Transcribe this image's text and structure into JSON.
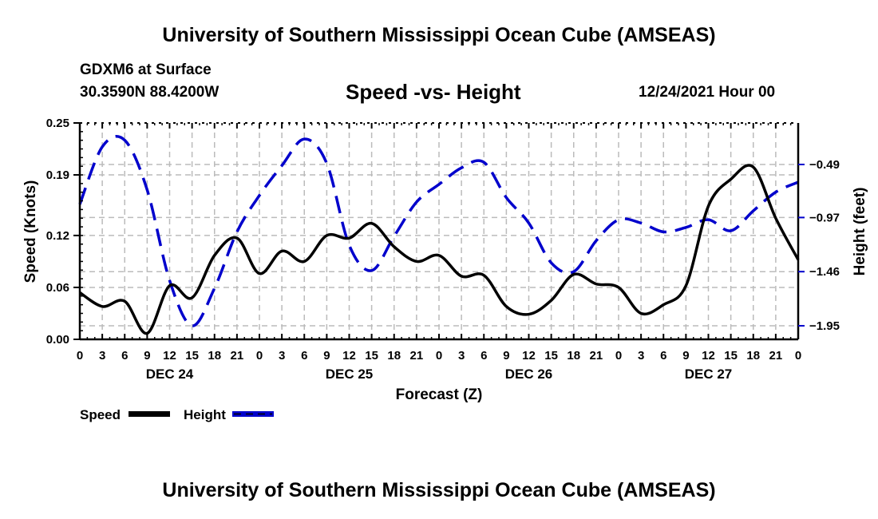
{
  "header": {
    "title": "University of Southern Mississippi Ocean Cube (AMSEAS)",
    "station": "GDXM6 at Surface",
    "coordinates": "30.3590N  88.4200W",
    "forecast_time": "12/24/2021 Hour 00"
  },
  "footer": {
    "title": "University of Southern Mississippi Ocean Cube (AMSEAS)"
  },
  "colors": {
    "speed": "#000000",
    "height": "#0000cc",
    "grid": "#bbbbbb"
  },
  "chart_data": {
    "type": "line",
    "title": "Speed -vs- Height",
    "xlabel": "Forecast (Z)",
    "ylabel": "Speed (Knots)",
    "y2label": "Height (feet)",
    "x_hours": [
      0,
      3,
      6,
      9,
      12,
      15,
      18,
      21,
      24,
      27,
      30,
      33,
      36,
      39,
      42,
      45,
      48,
      51,
      54,
      57,
      60,
      63,
      66,
      69,
      72,
      75,
      78,
      81,
      84,
      87,
      90,
      93,
      96
    ],
    "x_tick_labels": [
      "0",
      "3",
      "6",
      "9",
      "12",
      "15",
      "18",
      "21",
      "0",
      "3",
      "6",
      "9",
      "12",
      "15",
      "18",
      "21",
      "0",
      "3",
      "6",
      "9",
      "12",
      "15",
      "18",
      "21",
      "0",
      "3",
      "6",
      "9",
      "12",
      "15",
      "18",
      "21",
      "0"
    ],
    "date_labels": [
      {
        "label": "DEC 24",
        "at_hour": 12
      },
      {
        "label": "DEC 25",
        "at_hour": 36
      },
      {
        "label": "DEC 26",
        "at_hour": 60
      },
      {
        "label": "DEC 27",
        "at_hour": 84
      }
    ],
    "ylim": [
      0,
      0.25
    ],
    "y_ticks": [
      0.0,
      0.06,
      0.12,
      0.19,
      0.25
    ],
    "y_tick_labels": [
      "0.00",
      "0.06",
      "0.12",
      "0.19",
      "0.25"
    ],
    "y2lim": [
      -2.13,
      -0.21
    ],
    "y2_ticks": [
      -0.49,
      -0.97,
      -1.46,
      -1.95
    ],
    "y2_tick_labels": [
      "-0.49",
      "-0.97",
      "-1.46",
      "-1.95"
    ],
    "grid": true,
    "legend_position": "bottom-left",
    "series": [
      {
        "name": "Speed",
        "axis": "left",
        "style": "solid",
        "values": [
          0.054,
          0.038,
          0.044,
          0.007,
          0.062,
          0.048,
          0.097,
          0.117,
          0.076,
          0.102,
          0.09,
          0.12,
          0.117,
          0.134,
          0.107,
          0.09,
          0.097,
          0.073,
          0.074,
          0.038,
          0.029,
          0.045,
          0.075,
          0.064,
          0.06,
          0.03,
          0.04,
          0.062,
          0.154,
          0.185,
          0.199,
          0.14,
          0.092
        ]
      },
      {
        "name": "Height",
        "axis": "right",
        "style": "dashed",
        "values": [
          -0.85,
          -0.33,
          -0.27,
          -0.72,
          -1.54,
          -1.95,
          -1.61,
          -1.1,
          -0.77,
          -0.5,
          -0.26,
          -0.48,
          -1.22,
          -1.45,
          -1.14,
          -0.83,
          -0.67,
          -0.52,
          -0.47,
          -0.79,
          -1.02,
          -1.38,
          -1.46,
          -1.18,
          -0.99,
          -1.02,
          -1.1,
          -1.06,
          -0.99,
          -1.09,
          -0.91,
          -0.74,
          -0.65
        ]
      }
    ]
  }
}
